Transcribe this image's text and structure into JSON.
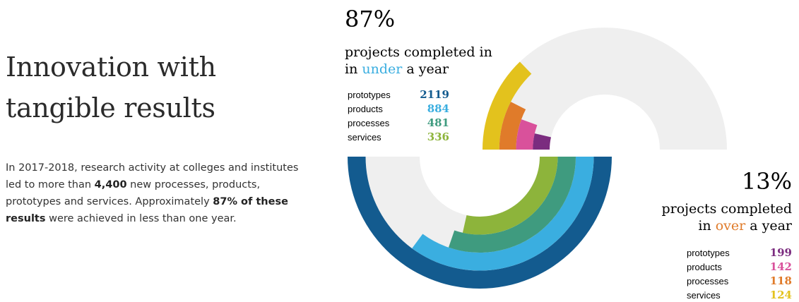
{
  "headline": {
    "line1": "Innovation with",
    "line2": "tangible results"
  },
  "intro": {
    "p1": "In 2017-2018, research activity at colleges and institutes led to more than ",
    "b1": "4,400",
    "p2": " new processes, products, prototypes and services. Approximately ",
    "b2": "87% of these results",
    "p3": " were achieved in less than one year."
  },
  "chart_data": {
    "type": "radial-bar",
    "groups": [
      {
        "name": "under a year",
        "share_label": "87%",
        "caption_line1": "projects completed in",
        "caption_pre": "in ",
        "caption_highlight": "under",
        "caption_post": " a year",
        "highlight_color": "#3aaee0",
        "categories": [
          "prototypes",
          "products",
          "processes",
          "services"
        ],
        "values": [
          2119,
          884,
          481,
          336
        ],
        "colors": [
          "#135b8f",
          "#3aaee0",
          "#3f9b7f",
          "#8db43b"
        ]
      },
      {
        "name": "over a year",
        "share_label": "13%",
        "caption_line1": "projects completed",
        "caption_pre": "in ",
        "caption_highlight": "over",
        "caption_post": " a year",
        "highlight_color": "#e07b2a",
        "categories": [
          "prototypes",
          "products",
          "processes",
          "services"
        ],
        "values": [
          199,
          142,
          118,
          124
        ],
        "colors": [
          "#7b2c7f",
          "#d9519b",
          "#e07b2a",
          "#e3c21d"
        ]
      }
    ],
    "background_color": "#efefef"
  }
}
